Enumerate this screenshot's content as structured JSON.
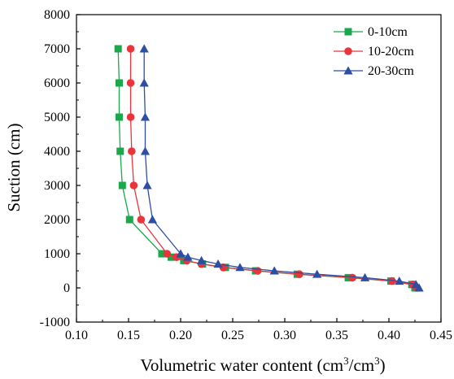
{
  "chart_data": {
    "type": "line",
    "xlabel": "Volumetric water content (cm",
    "xlabel_sup1": "3",
    "xlabel_mid": "/cm",
    "xlabel_sup2": "3",
    "xlabel_end": ")",
    "ylabel": "Suction (cm)",
    "xlim": [
      0.1,
      0.45
    ],
    "ylim": [
      -1000,
      8000
    ],
    "xticks": [
      0.1,
      0.15,
      0.2,
      0.25,
      0.3,
      0.35,
      0.4,
      0.45
    ],
    "xtick_labels": [
      "0.10",
      "0.15",
      "0.20",
      "0.25",
      "0.30",
      "0.35",
      "0.40",
      "0.45"
    ],
    "yticks": [
      -1000,
      0,
      1000,
      2000,
      3000,
      4000,
      5000,
      6000,
      7000,
      8000
    ],
    "ytick_labels": [
      "-1000",
      "0",
      "1000",
      "2000",
      "3000",
      "4000",
      "5000",
      "6000",
      "7000",
      "8000"
    ],
    "grid": false,
    "legend_position": "top-right",
    "series": [
      {
        "name": "0-10cm",
        "color": "#1aa84a",
        "marker": "square",
        "points": [
          [
            0.14,
            7000
          ],
          [
            0.141,
            6000
          ],
          [
            0.141,
            5000
          ],
          [
            0.142,
            4000
          ],
          [
            0.144,
            3000
          ],
          [
            0.151,
            2000
          ],
          [
            0.182,
            1000
          ],
          [
            0.191,
            900
          ],
          [
            0.203,
            800
          ],
          [
            0.221,
            700
          ],
          [
            0.243,
            600
          ],
          [
            0.272,
            500
          ],
          [
            0.312,
            400
          ],
          [
            0.361,
            300
          ],
          [
            0.402,
            200
          ],
          [
            0.422,
            100
          ],
          [
            0.425,
            0
          ]
        ]
      },
      {
        "name": "10-20cm",
        "color": "#e8343a",
        "marker": "circle",
        "points": [
          [
            0.152,
            7000
          ],
          [
            0.152,
            6000
          ],
          [
            0.152,
            5000
          ],
          [
            0.153,
            4000
          ],
          [
            0.155,
            3000
          ],
          [
            0.162,
            2000
          ],
          [
            0.187,
            1000
          ],
          [
            0.196,
            900
          ],
          [
            0.206,
            800
          ],
          [
            0.22,
            700
          ],
          [
            0.241,
            600
          ],
          [
            0.274,
            500
          ],
          [
            0.314,
            400
          ],
          [
            0.365,
            300
          ],
          [
            0.403,
            200
          ],
          [
            0.423,
            100
          ],
          [
            0.427,
            0
          ]
        ]
      },
      {
        "name": "20-30cm",
        "color": "#2c4fa3",
        "marker": "triangle",
        "points": [
          [
            0.165,
            7000
          ],
          [
            0.165,
            6000
          ],
          [
            0.166,
            5000
          ],
          [
            0.166,
            4000
          ],
          [
            0.168,
            3000
          ],
          [
            0.173,
            2000
          ],
          [
            0.2,
            1000
          ],
          [
            0.207,
            900
          ],
          [
            0.22,
            800
          ],
          [
            0.236,
            700
          ],
          [
            0.257,
            600
          ],
          [
            0.29,
            500
          ],
          [
            0.331,
            400
          ],
          [
            0.377,
            300
          ],
          [
            0.41,
            200
          ],
          [
            0.426,
            100
          ],
          [
            0.429,
            0
          ]
        ]
      }
    ]
  }
}
